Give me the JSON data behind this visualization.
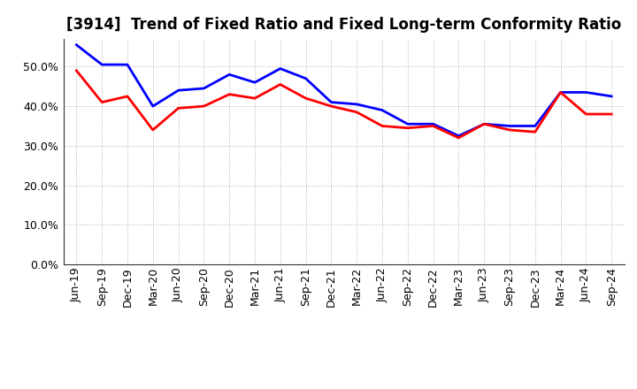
{
  "title": "[3914]  Trend of Fixed Ratio and Fixed Long-term Conformity Ratio",
  "x_labels": [
    "Jun-19",
    "Sep-19",
    "Dec-19",
    "Mar-20",
    "Jun-20",
    "Sep-20",
    "Dec-20",
    "Mar-21",
    "Jun-21",
    "Sep-21",
    "Dec-21",
    "Mar-22",
    "Jun-22",
    "Sep-22",
    "Dec-22",
    "Mar-23",
    "Jun-23",
    "Sep-23",
    "Dec-23",
    "Mar-24",
    "Jun-24",
    "Sep-24"
  ],
  "fixed_ratio": [
    55.5,
    50.5,
    50.5,
    40.0,
    44.0,
    44.5,
    48.0,
    46.0,
    49.5,
    47.0,
    41.0,
    40.5,
    39.0,
    35.5,
    35.5,
    32.5,
    35.5,
    35.0,
    35.0,
    43.5,
    43.5,
    42.5
  ],
  "fixed_lt_ratio": [
    49.0,
    41.0,
    42.5,
    34.0,
    39.5,
    40.0,
    43.0,
    42.0,
    45.5,
    42.0,
    40.0,
    38.5,
    35.0,
    34.5,
    35.0,
    32.0,
    35.5,
    34.0,
    33.5,
    43.5,
    38.0,
    38.0
  ],
  "fixed_ratio_color": "#0000ff",
  "fixed_lt_ratio_color": "#ff0000",
  "ylim": [
    0,
    57
  ],
  "yticks": [
    0,
    10,
    20,
    30,
    40,
    50
  ],
  "background_color": "#ffffff",
  "plot_bg_color": "#ffffff",
  "grid_color": "#aaaaaa",
  "line_width": 2.0,
  "title_fontsize": 12,
  "tick_fontsize": 9,
  "legend_fontsize": 9
}
